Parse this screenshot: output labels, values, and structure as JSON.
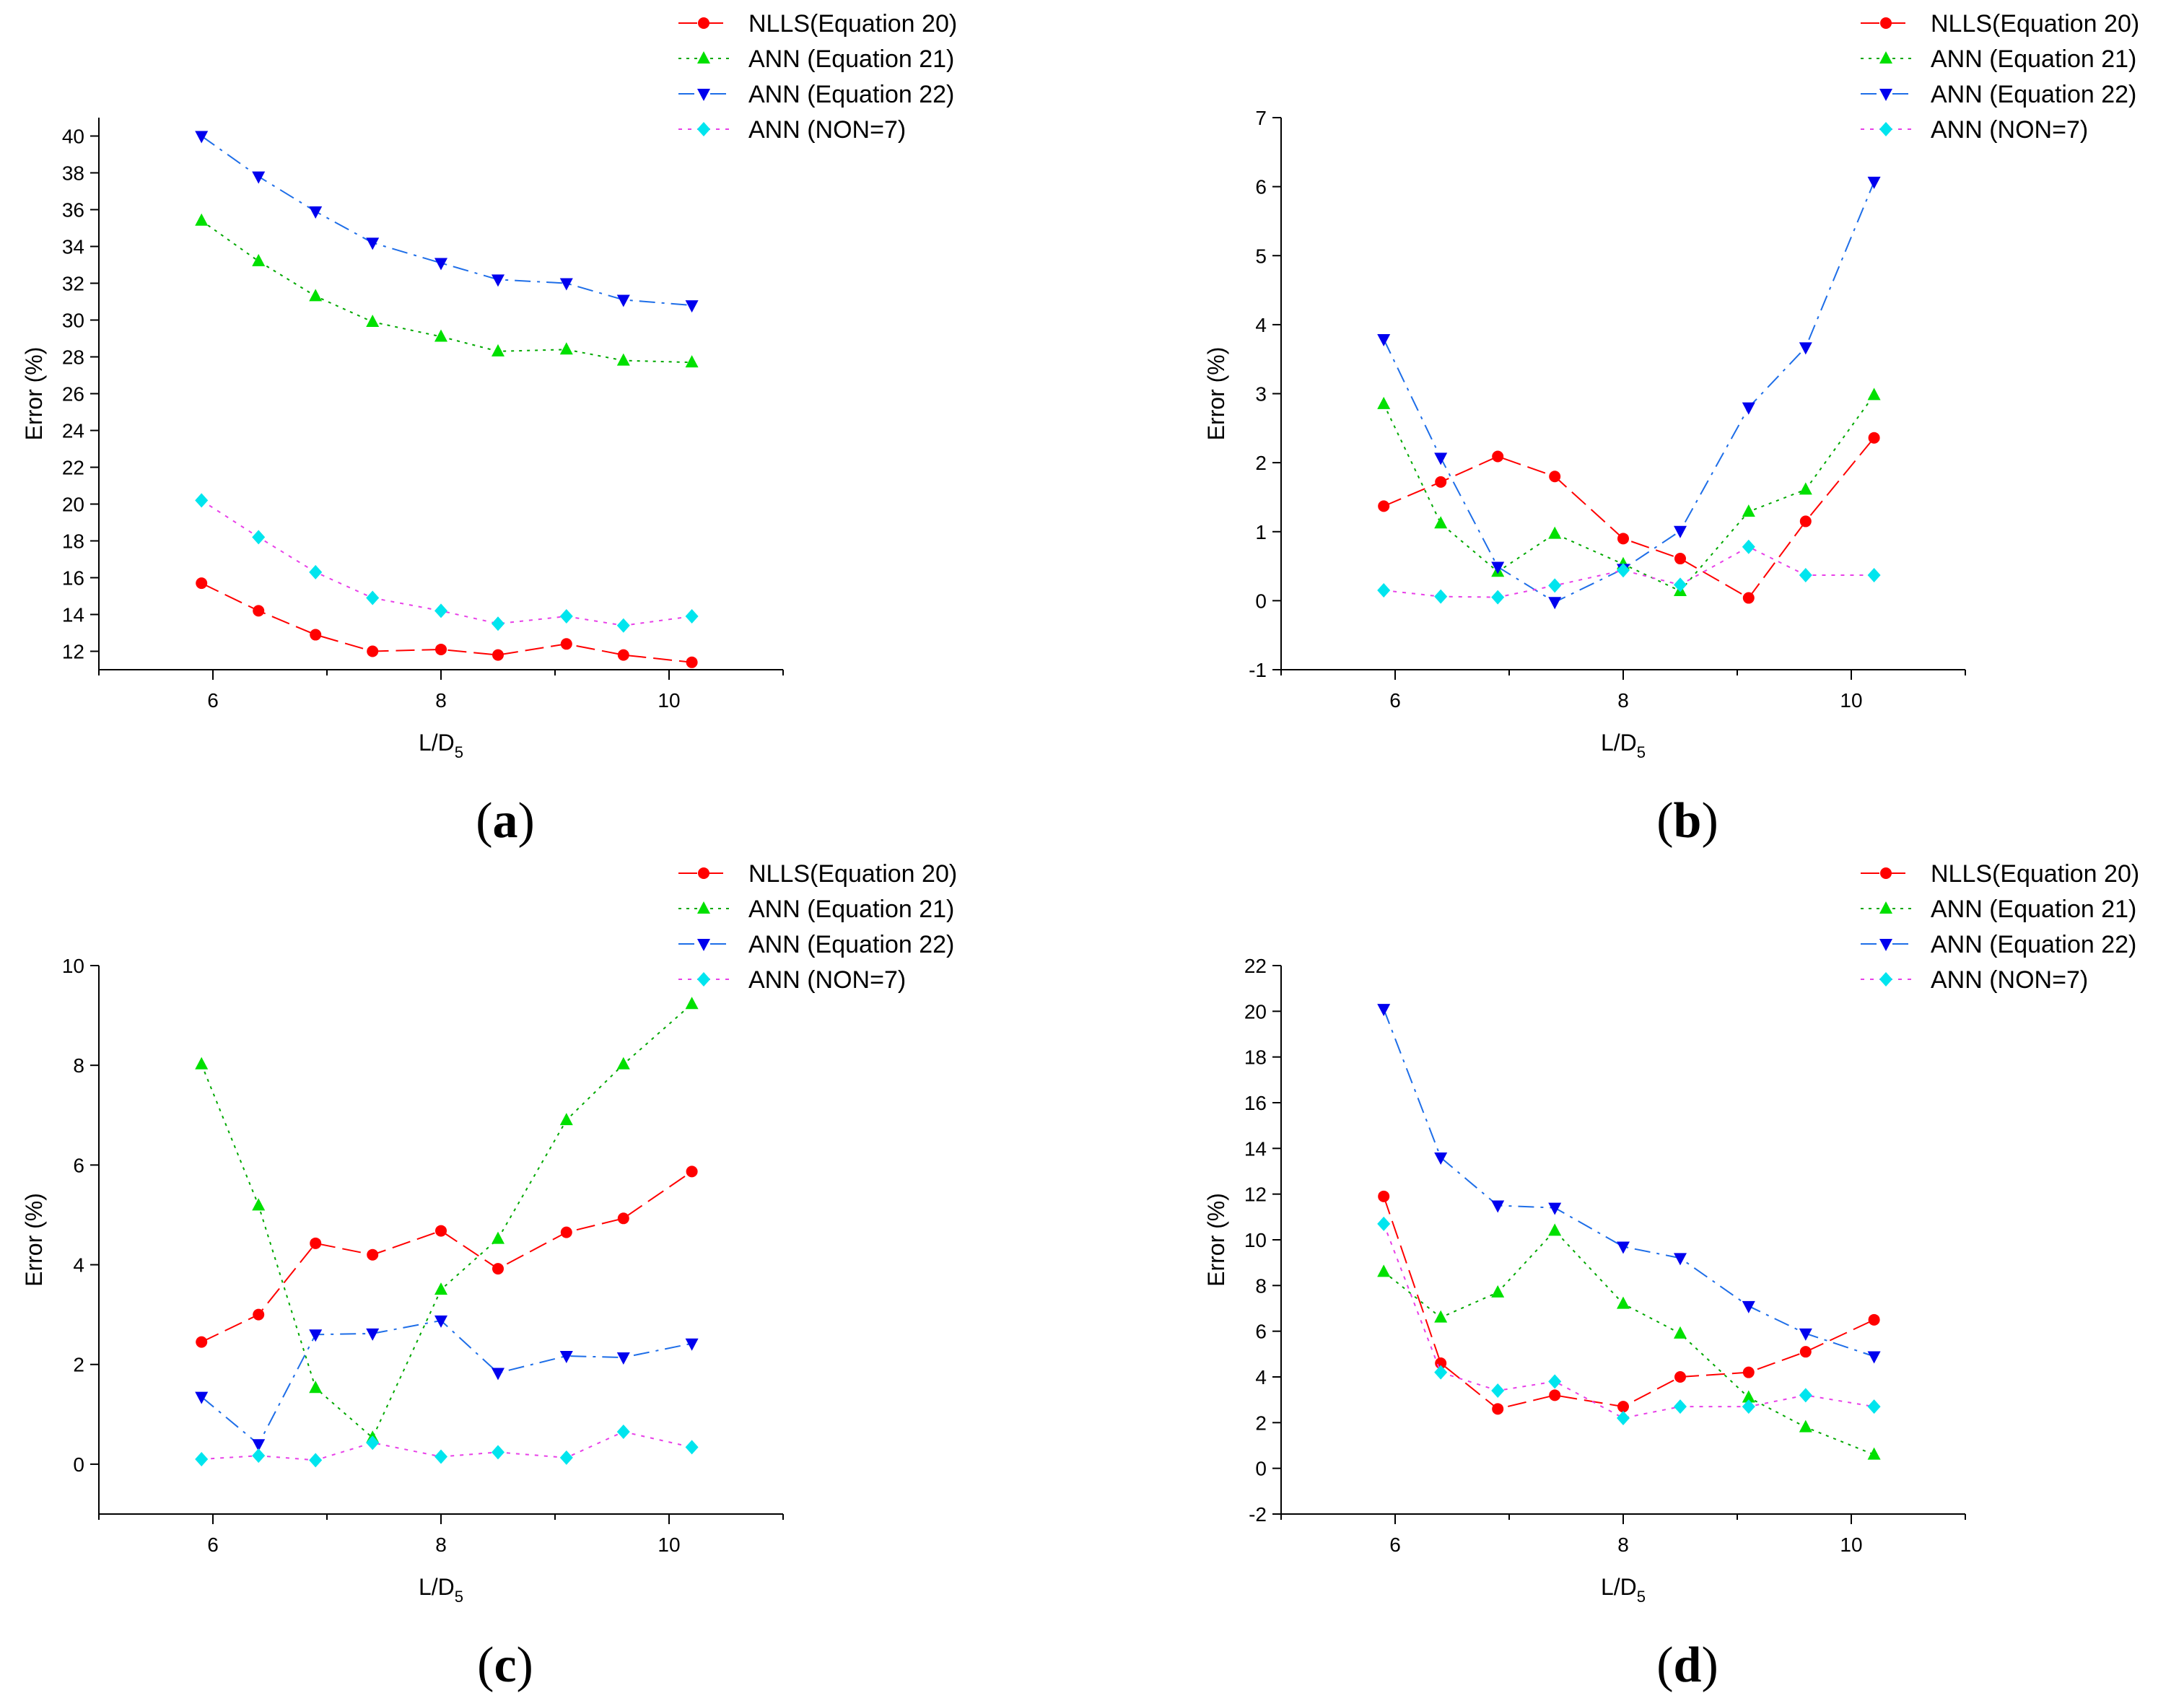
{
  "figure": {
    "legend_labels": [
      "NLLS(Equation 20)",
      "ANN (Equation 21)",
      "ANN (Equation 22)",
      "ANN (NON=7)"
    ],
    "series_colors": [
      "#ff0000",
      "#00e000",
      "#0000ee",
      "#00e5ee"
    ],
    "line_colors": [
      "#ff0000",
      "#00a800",
      "#1e6ee8",
      "#e840e8"
    ]
  },
  "chart_data": [
    {
      "type": "line",
      "panel": "a",
      "xlabel": "L/D",
      "xlabel_sub": "5",
      "ylabel": "Error (%)",
      "xlim": [
        5,
        11
      ],
      "ylim": [
        11,
        41
      ],
      "xticks": [
        6,
        8,
        10
      ],
      "yticks": [
        12,
        14,
        16,
        18,
        20,
        22,
        24,
        26,
        28,
        30,
        32,
        34,
        36,
        38,
        40
      ],
      "x": [
        5.9,
        6.4,
        6.9,
        7.4,
        8.0,
        8.5,
        9.1,
        9.6,
        10.2
      ],
      "series": [
        {
          "name": "NLLS(Equation 20)",
          "values": [
            15.7,
            14.2,
            12.9,
            12.0,
            12.1,
            11.8,
            12.4,
            11.8,
            11.4
          ]
        },
        {
          "name": "ANN (Equation 21)",
          "values": [
            35.4,
            33.2,
            31.3,
            29.9,
            29.1,
            28.3,
            28.4,
            27.8,
            27.7
          ]
        },
        {
          "name": "ANN (Equation 22)",
          "values": [
            40.0,
            37.8,
            35.9,
            34.2,
            33.1,
            32.2,
            32.0,
            31.1,
            30.8
          ]
        },
        {
          "name": "ANN (NON=7)",
          "values": [
            20.2,
            18.2,
            16.3,
            14.9,
            14.2,
            13.5,
            13.9,
            13.4,
            13.9
          ]
        }
      ]
    },
    {
      "type": "line",
      "panel": "b",
      "xlabel": "L/D",
      "xlabel_sub": "5",
      "ylabel": "Error (%)",
      "xlim": [
        5,
        11
      ],
      "ylim": [
        -1,
        7
      ],
      "xticks": [
        6,
        8,
        10
      ],
      "yticks": [
        -1,
        0,
        1,
        2,
        3,
        4,
        5,
        6,
        7
      ],
      "x": [
        5.9,
        6.4,
        6.9,
        7.4,
        8.0,
        8.5,
        9.1,
        9.6,
        10.2
      ],
      "series": [
        {
          "name": "NLLS(Equation 20)",
          "values": [
            1.37,
            1.72,
            2.09,
            1.8,
            0.9,
            0.61,
            0.04,
            1.15,
            2.36
          ]
        },
        {
          "name": "ANN (Equation 21)",
          "values": [
            2.85,
            1.12,
            0.42,
            0.97,
            0.53,
            0.14,
            1.29,
            1.61,
            2.98
          ]
        },
        {
          "name": "ANN (Equation 22)",
          "values": [
            3.79,
            2.07,
            0.49,
            -0.02,
            0.46,
            1.01,
            2.8,
            3.67,
            6.07
          ]
        },
        {
          "name": "ANN (NON=7)",
          "values": [
            0.15,
            0.06,
            0.05,
            0.22,
            0.44,
            0.23,
            0.78,
            0.37,
            0.37
          ]
        }
      ]
    },
    {
      "type": "line",
      "panel": "c",
      "xlabel": "L/D",
      "xlabel_sub": "5",
      "ylabel": "Error (%)",
      "xlim": [
        5,
        11
      ],
      "ylim": [
        -1,
        10
      ],
      "xticks": [
        6,
        8,
        10
      ],
      "yticks": [
        0,
        2,
        4,
        6,
        8,
        10
      ],
      "x": [
        5.9,
        6.4,
        6.9,
        7.4,
        8.0,
        8.5,
        9.1,
        9.6,
        10.2
      ],
      "series": [
        {
          "name": "NLLS(Equation 20)",
          "values": [
            2.45,
            3.0,
            4.43,
            4.2,
            4.68,
            3.92,
            4.65,
            4.93,
            5.87
          ]
        },
        {
          "name": "ANN (Equation 21)",
          "values": [
            8.02,
            5.19,
            1.53,
            0.53,
            3.5,
            4.52,
            6.9,
            8.02,
            9.23
          ]
        },
        {
          "name": "ANN (Equation 22)",
          "values": [
            1.35,
            0.4,
            2.6,
            2.62,
            2.88,
            1.83,
            2.17,
            2.14,
            2.42
          ]
        },
        {
          "name": "ANN (NON=7)",
          "values": [
            0.1,
            0.17,
            0.08,
            0.43,
            0.15,
            0.24,
            0.13,
            0.65,
            0.34
          ]
        }
      ]
    },
    {
      "type": "line",
      "panel": "d",
      "xlabel": "L/D",
      "xlabel_sub": "5",
      "ylabel": "Error (%)",
      "xlim": [
        5,
        11
      ],
      "ylim": [
        -2,
        22
      ],
      "xticks": [
        6,
        8,
        10
      ],
      "yticks": [
        -2,
        0,
        2,
        4,
        6,
        8,
        10,
        12,
        14,
        16,
        18,
        20,
        22
      ],
      "x": [
        5.9,
        6.4,
        6.9,
        7.4,
        8.0,
        8.5,
        9.1,
        9.6,
        10.2
      ],
      "series": [
        {
          "name": "NLLS(Equation 20)",
          "values": [
            11.9,
            4.6,
            2.6,
            3.2,
            2.7,
            4.0,
            4.2,
            5.1,
            6.5
          ]
        },
        {
          "name": "ANN (Equation 21)",
          "values": [
            8.6,
            6.6,
            7.7,
            10.4,
            7.2,
            5.9,
            3.1,
            1.8,
            0.6
          ]
        },
        {
          "name": "ANN (Equation 22)",
          "values": [
            20.1,
            13.6,
            11.5,
            11.4,
            9.7,
            9.2,
            7.1,
            5.9,
            4.9
          ]
        },
        {
          "name": "ANN (NON=7)",
          "values": [
            10.7,
            4.2,
            3.4,
            3.8,
            2.2,
            2.7,
            2.7,
            3.2,
            2.7
          ]
        }
      ]
    }
  ],
  "panel_labels": [
    "(a)",
    "(b)",
    "(c)",
    "(d)"
  ],
  "panel_letters": [
    "a",
    "b",
    "c",
    "d"
  ]
}
